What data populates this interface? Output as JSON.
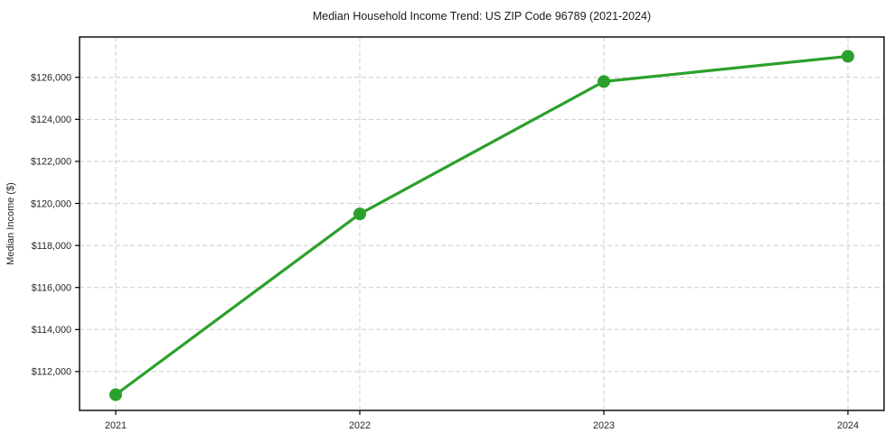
{
  "chart_data": {
    "type": "line",
    "title": "Median Household Income Trend: US ZIP Code 96789 (2021-2024)",
    "xlabel": "",
    "ylabel": "Median Income ($)",
    "x": [
      2021,
      2022,
      2023,
      2024
    ],
    "xtick_labels": [
      "2021",
      "2022",
      "2023",
      "2024"
    ],
    "series": [
      {
        "name": "Median Household Income",
        "values": [
          110900,
          119500,
          125800,
          127000
        ]
      }
    ],
    "ylim": [
      110150,
      127920
    ],
    "yticks": [
      112000,
      114000,
      116000,
      118000,
      120000,
      122000,
      124000,
      126000
    ],
    "ytick_labels": [
      "$112,000",
      "$114,000",
      "$116,000",
      "$118,000",
      "$120,000",
      "$122,000",
      "$124,000",
      "$126,000"
    ],
    "grid": true,
    "legend": "none",
    "colors": {
      "line": "#2ca02c",
      "marker": "#2ca02c",
      "grid": "#cccccc",
      "spine": "#000000",
      "background": "#ffffff"
    }
  }
}
